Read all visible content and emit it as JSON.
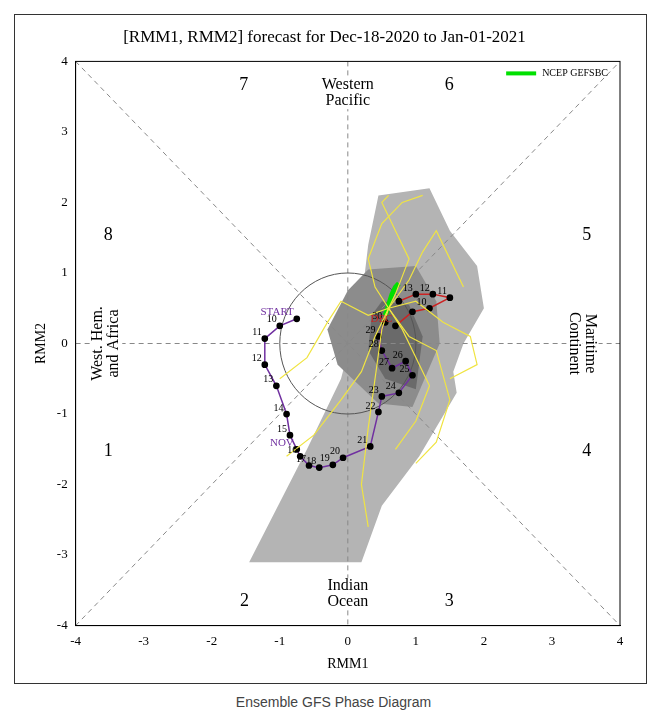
{
  "chart_data": {
    "type": "scatter",
    "title": "[RMM1, RMM2] forecast for Dec-18-2020 to Jan-01-2021",
    "x_label": "RMM1",
    "y_label": "RMM2",
    "caption": "Ensemble GFS Phase Diagram",
    "xlim": [
      -4,
      4
    ],
    "ylim": [
      -4,
      4
    ],
    "xticks": [
      -4,
      -3,
      -2,
      -1,
      0,
      1,
      2,
      3,
      4
    ],
    "yticks": [
      -4,
      -3,
      -2,
      -1,
      0,
      1,
      2,
      3,
      4
    ],
    "grid": false,
    "legend": "upper right",
    "circle_radius": 1,
    "phase_labels": [
      {
        "text": "1",
        "x": -3.52,
        "y": -1.53
      },
      {
        "text": "2",
        "x": -1.52,
        "y": -3.66
      },
      {
        "text": "3",
        "x": 1.49,
        "y": -3.66
      },
      {
        "text": "4",
        "x": 3.51,
        "y": -1.53
      },
      {
        "text": "5",
        "x": 3.51,
        "y": 1.53
      },
      {
        "text": "6",
        "x": 1.49,
        "y": 3.66
      },
      {
        "text": "7",
        "x": -1.53,
        "y": 3.66
      },
      {
        "text": "8",
        "x": -3.52,
        "y": 1.53
      }
    ],
    "region_labels": [
      {
        "lines": [
          "Western",
          "Pacific"
        ],
        "x": 0,
        "y": 3.55
      },
      {
        "lines": [
          "Indian",
          "Ocean"
        ],
        "x": 0,
        "y": -3.55
      },
      {
        "lines": [
          "West. Hem.",
          "and Africa"
        ],
        "x": -3.55,
        "y": 0
      },
      {
        "lines": [
          "Maritime",
          "Continent"
        ],
        "x": 3.45,
        "y": 0
      }
    ],
    "spread": [
      {
        "color": "#b4b4b4",
        "x": [
          0.45,
          1.2,
          1.5,
          1.9,
          2.0,
          1.7,
          1.55,
          1.6,
          1.05,
          0.5,
          0.2,
          -1.45,
          -0.6,
          -0.1,
          0.2,
          0.3
        ],
        "y": [
          2.1,
          2.2,
          1.6,
          1.1,
          0.5,
          0.0,
          -0.4,
          -0.7,
          -1.6,
          -2.3,
          -3.1,
          -3.1,
          -1.5,
          -0.5,
          0.6,
          1.4
        ]
      },
      {
        "color": "#8c8c8c",
        "x": [
          0.3,
          1.0,
          1.3,
          1.35,
          0.95,
          0.45,
          -0.15,
          -0.3,
          0.0
        ],
        "y": [
          1.05,
          1.1,
          0.6,
          0.0,
          -0.9,
          -0.85,
          -0.3,
          0.2,
          0.75
        ]
      },
      {
        "color": "#6a6a6a",
        "x": [
          0.5,
          0.9,
          1.1,
          1.0,
          0.55,
          0.3,
          0.35
        ],
        "y": [
          0.6,
          0.55,
          0.1,
          -0.65,
          -0.5,
          -0.1,
          0.4
        ]
      }
    ],
    "members": {
      "color": "#f0e442",
      "lines": [
        {
          "x": [
            0.6,
            0.9,
            1.1,
            1.3,
            1.5,
            1.7
          ],
          "y": [
            0.5,
            0.9,
            1.3,
            1.6,
            1.2,
            0.8
          ]
        },
        {
          "x": [
            0.6,
            0.4,
            0.3,
            0.5,
            0.8,
            1.1
          ],
          "y": [
            0.5,
            0.8,
            1.2,
            1.7,
            2.0,
            2.1
          ]
        },
        {
          "x": [
            0.6,
            0.8,
            1.0,
            1.2,
            1.0,
            0.7
          ],
          "y": [
            0.5,
            0.2,
            -0.2,
            -0.6,
            -1.1,
            -1.5
          ]
        },
        {
          "x": [
            0.6,
            0.4,
            0.2,
            -0.1,
            -0.5,
            -0.9
          ],
          "y": [
            0.5,
            0.1,
            -0.4,
            -0.8,
            -1.3,
            -1.6
          ]
        },
        {
          "x": [
            0.6,
            0.5,
            0.4,
            0.3,
            0.2,
            0.3
          ],
          "y": [
            0.5,
            0.2,
            -0.5,
            -1.2,
            -2.0,
            -2.6
          ]
        },
        {
          "x": [
            0.6,
            1.0,
            1.4,
            1.8,
            1.9,
            1.5
          ],
          "y": [
            0.5,
            0.6,
            0.3,
            0.1,
            -0.3,
            -0.5
          ]
        },
        {
          "x": [
            0.6,
            0.3,
            -0.1,
            -0.3,
            -0.6,
            -1.0
          ],
          "y": [
            0.5,
            0.4,
            0.6,
            0.3,
            -0.2,
            -0.5
          ]
        },
        {
          "x": [
            0.6,
            0.7,
            0.9,
            0.7,
            0.5,
            0.6
          ],
          "y": [
            0.5,
            0.7,
            1.2,
            1.6,
            2.0,
            2.1
          ]
        },
        {
          "x": [
            0.6,
            0.9,
            1.3,
            1.5,
            1.3,
            1.0
          ],
          "y": [
            0.5,
            0.1,
            -0.1,
            -0.8,
            -1.4,
            -1.7
          ]
        }
      ]
    },
    "observed": [
      {
        "color": "#7030a0",
        "x": [
          -0.75,
          -1.0,
          -1.22,
          -1.22,
          -1.05,
          -0.9,
          -0.85,
          -0.75,
          -0.7,
          -0.57,
          -0.42,
          -0.22,
          -0.07,
          0.33,
          0.45,
          0.5,
          0.75,
          0.95,
          0.85,
          0.65,
          0.5,
          0.45,
          0.55
        ],
        "y": [
          0.35,
          0.25,
          0.07,
          -0.3,
          -0.6,
          -1.0,
          -1.3,
          -1.5,
          -1.6,
          -1.73,
          -1.76,
          -1.72,
          -1.62,
          -1.46,
          -0.97,
          -0.75,
          -0.7,
          -0.45,
          -0.25,
          -0.35,
          -0.1,
          0.1,
          0.3
        ],
        "labels": [
          "START",
          "10",
          "11",
          "12",
          "13",
          "14",
          "15",
          "NOV",
          "16",
          "17",
          "18",
          "19",
          "20",
          "21",
          "22",
          "23",
          "24",
          "25",
          "26",
          "27",
          "28",
          "29",
          "30"
        ]
      },
      {
        "color": "#cc2222",
        "x": [
          0.7,
          0.95,
          1.2,
          1.5,
          1.25,
          1.0,
          0.75
        ],
        "y": [
          0.25,
          0.45,
          0.5,
          0.65,
          0.7,
          0.7,
          0.6
        ],
        "labels": [
          "DEC",
          null,
          "10",
          "11",
          "12",
          "13",
          null
        ]
      }
    ],
    "series": [
      {
        "name": "NCEP GEFSBC",
        "color": "#00e000",
        "x": [
          0.55,
          0.6,
          0.65,
          0.7,
          0.75
        ],
        "y": [
          0.4,
          0.55,
          0.7,
          0.8,
          0.85
        ]
      }
    ]
  }
}
